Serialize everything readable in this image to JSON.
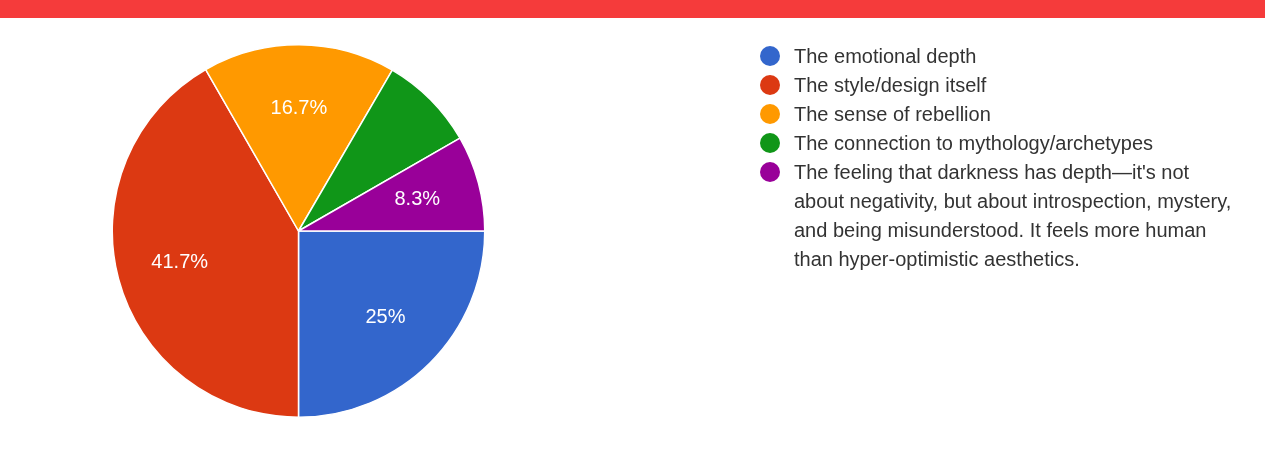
{
  "chart_data": {
    "type": "pie",
    "categories": [
      "The emotional depth",
      "The style/design itself",
      "The sense of rebellion",
      "The connection to mythology/archetypes",
      "The feeling that darkness has depth—it's not about negativity, but about introspection, mystery, and being misunderstood. It feels more human than hyper-optimistic aesthetics."
    ],
    "values": [
      25,
      41.7,
      16.7,
      8.3,
      8.3
    ],
    "colors": [
      "#3366cc",
      "#dc3912",
      "#ff9900",
      "#109618",
      "#990099"
    ],
    "value_labels": [
      "25%",
      "41.7%",
      "16.7%",
      null,
      "8.3%"
    ],
    "legend": "right"
  }
}
